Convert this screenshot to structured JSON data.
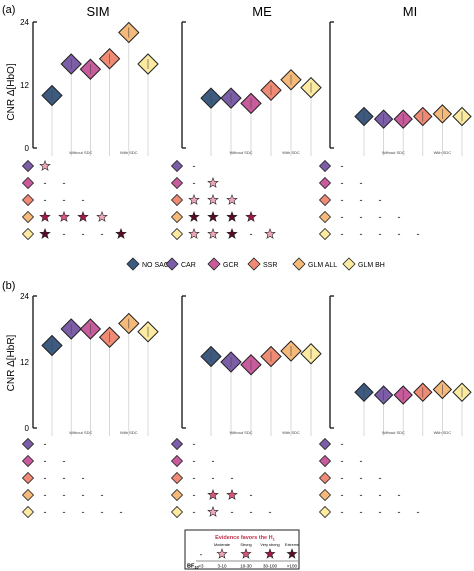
{
  "panel_letters": [
    "(a)",
    "(b)"
  ],
  "column_titles": [
    "SIM",
    "ME",
    "MI"
  ],
  "colors": {
    "NO SAC": "#3d5a80",
    "CAR": "#7b5ea7",
    "GCR": "#c75b9b",
    "SSR": "#ef8a74",
    "GLM ALL": "#f5b97a",
    "GLM BH": "#fbeaa0",
    "star_fill_scale": [
      "#ffffff",
      "#f0a8b8",
      "#d9577a",
      "#a4154a",
      "#5a0a2a"
    ]
  },
  "legend": {
    "items": [
      "NO SAC",
      "CAR",
      "GCR",
      "SSR",
      "GLM ALL",
      "GLM  BH"
    ]
  },
  "evidence_key": {
    "title": "Evidence favors the H",
    "title_sub": "1",
    "categories": [
      "Moderate",
      "Strong",
      "Very strong",
      "Extreme"
    ],
    "bf_label": "BF",
    "bf_sub": "10",
    "ranges": [
      "<3",
      "3-10",
      "10-30",
      "30-100",
      ">100"
    ],
    "none_symbol": "-"
  },
  "chart_data": [
    {
      "type": "scatter",
      "panel": "(a)",
      "ylabel": "CNR Δ[HbO]",
      "ylim": [
        0,
        24
      ],
      "yticks": [
        0,
        12,
        24
      ],
      "group_labels": [
        "Without SDC",
        "With SDC"
      ],
      "methods": [
        "NO SAC",
        "CAR",
        "GCR",
        "SSR",
        "GLM ALL",
        "GLM BH"
      ],
      "series": [
        {
          "column": "SIM",
          "values": [
            10,
            16,
            15,
            17,
            22,
            16
          ]
        },
        {
          "column": "ME",
          "values": [
            9.5,
            9.5,
            8.5,
            11,
            13,
            11.5
          ]
        },
        {
          "column": "MI",
          "values": [
            6,
            5.5,
            5.5,
            6,
            6.5,
            6
          ]
        }
      ],
      "bf_tables": [
        {
          "column": "SIM",
          "rows": [
            [
              1
            ],
            [
              0,
              0
            ],
            [
              0,
              0,
              0
            ],
            [
              3,
              2,
              3,
              1
            ],
            [
              4,
              0,
              0,
              0,
              4
            ]
          ]
        },
        {
          "column": "ME",
          "rows": [
            [
              0
            ],
            [
              0,
              1
            ],
            [
              1,
              1,
              1
            ],
            [
              4,
              4,
              4,
              3
            ],
            [
              1,
              1,
              4,
              0,
              1
            ]
          ]
        },
        {
          "column": "MI",
          "rows": [
            [
              0
            ],
            [
              0,
              0
            ],
            [
              0,
              0,
              0
            ],
            [
              0,
              0,
              0,
              0
            ],
            [
              0,
              0,
              0,
              0,
              0
            ]
          ]
        }
      ]
    },
    {
      "type": "scatter",
      "panel": "(b)",
      "ylabel": "CNR Δ[HbR]",
      "ylim": [
        0,
        24
      ],
      "yticks": [
        0,
        12,
        24
      ],
      "group_labels": [
        "Without SDC",
        "With SDC"
      ],
      "methods": [
        "NO SAC",
        "CAR",
        "GCR",
        "SSR",
        "GLM ALL",
        "GLM BH"
      ],
      "series": [
        {
          "column": "SIM",
          "values": [
            15,
            18,
            18,
            16.5,
            19,
            17.5
          ]
        },
        {
          "column": "ME",
          "values": [
            13,
            12,
            11.5,
            13,
            14,
            13.5
          ]
        },
        {
          "column": "MI",
          "values": [
            6.5,
            6,
            6,
            6.5,
            7,
            6.5
          ]
        }
      ],
      "bf_tables": [
        {
          "column": "SIM",
          "rows": [
            [
              0
            ],
            [
              0,
              0
            ],
            [
              0,
              0,
              0
            ],
            [
              0,
              0,
              0,
              0
            ],
            [
              0,
              0,
              0,
              0,
              0
            ]
          ]
        },
        {
          "column": "ME",
          "rows": [
            [
              0
            ],
            [
              0,
              0
            ],
            [
              0,
              0,
              0
            ],
            [
              0,
              2,
              2,
              0
            ],
            [
              0,
              1,
              0,
              0,
              0
            ]
          ]
        },
        {
          "column": "MI",
          "rows": [
            [
              0
            ],
            [
              0,
              0
            ],
            [
              0,
              0,
              0
            ],
            [
              0,
              0,
              0,
              0
            ],
            [
              0,
              0,
              0,
              0,
              0
            ]
          ]
        }
      ]
    }
  ]
}
